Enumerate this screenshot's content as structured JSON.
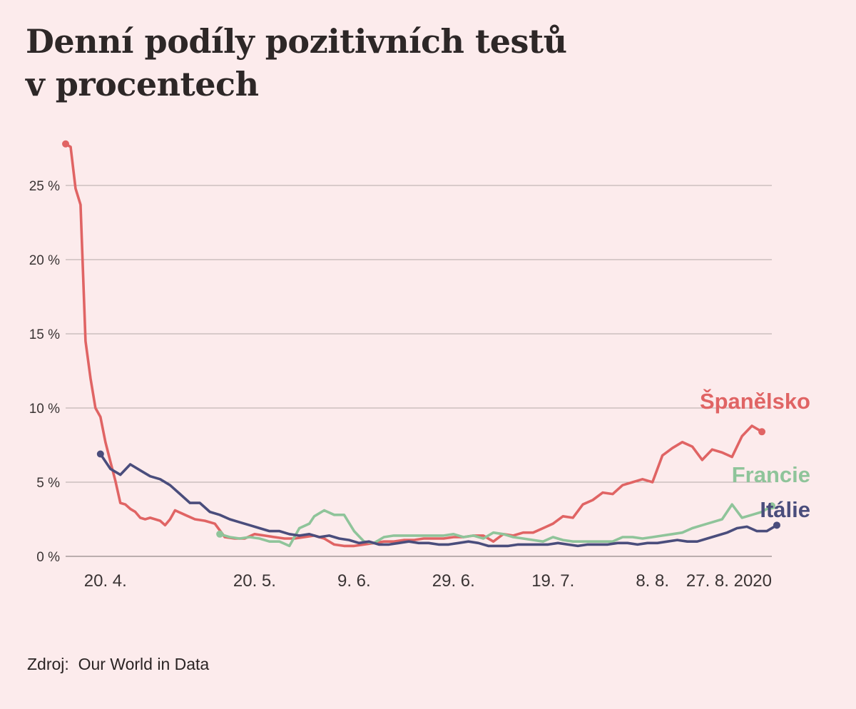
{
  "title": {
    "line1": "Denní podíly pozitivních testů",
    "line2": "v procentech"
  },
  "source": {
    "label": "Zdroj:",
    "text": "Our World in Data"
  },
  "chart_data": {
    "type": "line",
    "title": "Denní podíly pozitivních testů v procentech",
    "xlabel": "",
    "ylabel": "",
    "ylim": [
      0,
      28
    ],
    "yticks": [
      0,
      5,
      10,
      15,
      20,
      25
    ],
    "ytick_labels": [
      "0 %",
      "5 %",
      "10 %",
      "15 %",
      "20 %",
      "25 %"
    ],
    "xlim": [
      "2020-04-12",
      "2020-09-01"
    ],
    "xticks": [
      "2020-04-20",
      "2020-05-20",
      "2020-06-09",
      "2020-06-29",
      "2020-07-19",
      "2020-08-08",
      "2020-08-27"
    ],
    "xtick_labels": [
      "20. 4.",
      "20. 5.",
      "9. 6.",
      "29. 6.",
      "19. 7.",
      "8. 8.",
      "27. 8. 2020"
    ],
    "grid": true,
    "series": [
      {
        "name": "Španělsko",
        "color": "#e06464",
        "x": [
          "2020-04-12",
          "2020-04-13",
          "2020-04-14",
          "2020-04-15",
          "2020-04-16",
          "2020-04-17",
          "2020-04-18",
          "2020-04-19",
          "2020-04-20",
          "2020-04-21",
          "2020-04-22",
          "2020-04-23",
          "2020-04-24",
          "2020-04-25",
          "2020-04-26",
          "2020-04-27",
          "2020-04-28",
          "2020-04-29",
          "2020-04-30",
          "2020-05-01",
          "2020-05-02",
          "2020-05-03",
          "2020-05-04",
          "2020-05-06",
          "2020-05-08",
          "2020-05-10",
          "2020-05-12",
          "2020-05-14",
          "2020-05-16",
          "2020-05-18",
          "2020-05-20",
          "2020-05-22",
          "2020-05-24",
          "2020-05-26",
          "2020-05-28",
          "2020-05-30",
          "2020-06-01",
          "2020-06-03",
          "2020-06-05",
          "2020-06-07",
          "2020-06-09",
          "2020-06-11",
          "2020-06-13",
          "2020-06-15",
          "2020-06-17",
          "2020-06-19",
          "2020-06-21",
          "2020-06-23",
          "2020-06-25",
          "2020-06-27",
          "2020-06-29",
          "2020-07-01",
          "2020-07-03",
          "2020-07-05",
          "2020-07-07",
          "2020-07-09",
          "2020-07-11",
          "2020-07-13",
          "2020-07-15",
          "2020-07-17",
          "2020-07-19",
          "2020-07-21",
          "2020-07-23",
          "2020-07-25",
          "2020-07-27",
          "2020-07-29",
          "2020-07-31",
          "2020-08-02",
          "2020-08-04",
          "2020-08-06",
          "2020-08-08",
          "2020-08-10",
          "2020-08-12",
          "2020-08-14",
          "2020-08-16",
          "2020-08-18",
          "2020-08-20",
          "2020-08-22",
          "2020-08-24",
          "2020-08-26",
          "2020-08-28",
          "2020-08-30"
        ],
        "values": [
          27.8,
          27.6,
          24.8,
          23.7,
          14.5,
          12.0,
          10.0,
          9.4,
          7.7,
          6.4,
          5.1,
          3.6,
          3.5,
          3.2,
          3.0,
          2.6,
          2.5,
          2.6,
          2.5,
          2.4,
          2.1,
          2.5,
          3.1,
          2.8,
          2.5,
          2.4,
          2.2,
          1.3,
          1.2,
          1.2,
          1.5,
          1.4,
          1.3,
          1.2,
          1.2,
          1.3,
          1.4,
          1.2,
          0.8,
          0.7,
          0.7,
          0.8,
          0.9,
          1.0,
          1.0,
          1.1,
          1.1,
          1.2,
          1.2,
          1.2,
          1.3,
          1.3,
          1.4,
          1.4,
          1.0,
          1.5,
          1.4,
          1.6,
          1.6,
          1.9,
          2.2,
          2.7,
          2.6,
          3.5,
          3.8,
          4.3,
          4.2,
          4.8,
          5.0,
          5.2,
          5.0,
          6.8,
          7.3,
          7.7,
          7.4,
          6.5,
          7.2,
          7.0,
          6.7,
          8.1,
          8.8,
          8.4
        ]
      },
      {
        "name": "Francie",
        "color": "#8fc49a",
        "x": [
          "2020-05-13",
          "2020-05-15",
          "2020-05-17",
          "2020-05-19",
          "2020-05-21",
          "2020-05-23",
          "2020-05-25",
          "2020-05-27",
          "2020-05-29",
          "2020-05-31",
          "2020-06-01",
          "2020-06-03",
          "2020-06-05",
          "2020-06-07",
          "2020-06-09",
          "2020-06-11",
          "2020-06-13",
          "2020-06-15",
          "2020-06-17",
          "2020-06-19",
          "2020-06-21",
          "2020-06-23",
          "2020-06-25",
          "2020-06-27",
          "2020-06-29",
          "2020-07-01",
          "2020-07-03",
          "2020-07-05",
          "2020-07-07",
          "2020-07-09",
          "2020-07-11",
          "2020-07-13",
          "2020-07-15",
          "2020-07-17",
          "2020-07-19",
          "2020-07-21",
          "2020-07-23",
          "2020-07-25",
          "2020-07-27",
          "2020-07-29",
          "2020-07-31",
          "2020-08-02",
          "2020-08-04",
          "2020-08-06",
          "2020-08-08",
          "2020-08-10",
          "2020-08-12",
          "2020-08-14",
          "2020-08-16",
          "2020-08-18",
          "2020-08-20",
          "2020-08-22",
          "2020-08-24",
          "2020-08-26",
          "2020-08-28",
          "2020-08-30",
          "2020-09-01"
        ],
        "values": [
          1.5,
          1.3,
          1.2,
          1.3,
          1.2,
          1.0,
          1.0,
          0.7,
          1.9,
          2.2,
          2.7,
          3.1,
          2.8,
          2.8,
          1.7,
          1.0,
          0.9,
          1.3,
          1.4,
          1.4,
          1.4,
          1.4,
          1.4,
          1.4,
          1.5,
          1.3,
          1.4,
          1.2,
          1.6,
          1.5,
          1.3,
          1.2,
          1.1,
          1.0,
          1.3,
          1.1,
          1.0,
          1.0,
          1.0,
          1.0,
          1.0,
          1.3,
          1.3,
          1.2,
          1.3,
          1.4,
          1.5,
          1.6,
          1.9,
          2.1,
          2.3,
          2.5,
          3.5,
          2.6,
          2.8,
          3.0,
          3.4
        ]
      },
      {
        "name": "Itálie",
        "color": "#4a4d7c",
        "x": [
          "2020-04-19",
          "2020-04-21",
          "2020-04-23",
          "2020-04-25",
          "2020-04-27",
          "2020-04-29",
          "2020-05-01",
          "2020-05-03",
          "2020-05-05",
          "2020-05-07",
          "2020-05-09",
          "2020-05-11",
          "2020-05-13",
          "2020-05-15",
          "2020-05-17",
          "2020-05-19",
          "2020-05-21",
          "2020-05-23",
          "2020-05-25",
          "2020-05-27",
          "2020-05-29",
          "2020-05-31",
          "2020-06-02",
          "2020-06-04",
          "2020-06-06",
          "2020-06-08",
          "2020-06-10",
          "2020-06-12",
          "2020-06-14",
          "2020-06-16",
          "2020-06-18",
          "2020-06-20",
          "2020-06-22",
          "2020-06-24",
          "2020-06-26",
          "2020-06-28",
          "2020-06-30",
          "2020-07-02",
          "2020-07-04",
          "2020-07-06",
          "2020-07-08",
          "2020-07-10",
          "2020-07-12",
          "2020-07-14",
          "2020-07-16",
          "2020-07-18",
          "2020-07-20",
          "2020-07-22",
          "2020-07-24",
          "2020-07-26",
          "2020-07-28",
          "2020-07-30",
          "2020-08-01",
          "2020-08-03",
          "2020-08-05",
          "2020-08-07",
          "2020-08-09",
          "2020-08-11",
          "2020-08-13",
          "2020-08-15",
          "2020-08-17",
          "2020-08-19",
          "2020-08-21",
          "2020-08-23",
          "2020-08-25",
          "2020-08-27",
          "2020-08-29",
          "2020-08-31",
          "2020-09-02"
        ],
        "values": [
          6.9,
          5.9,
          5.5,
          6.2,
          5.8,
          5.4,
          5.2,
          4.8,
          4.2,
          3.6,
          3.6,
          3.0,
          2.8,
          2.5,
          2.3,
          2.1,
          1.9,
          1.7,
          1.7,
          1.5,
          1.4,
          1.5,
          1.3,
          1.4,
          1.2,
          1.1,
          0.9,
          1.0,
          0.8,
          0.8,
          0.9,
          1.0,
          0.9,
          0.9,
          0.8,
          0.8,
          0.9,
          1.0,
          0.9,
          0.7,
          0.7,
          0.7,
          0.8,
          0.8,
          0.8,
          0.8,
          0.9,
          0.8,
          0.7,
          0.8,
          0.8,
          0.8,
          0.9,
          0.9,
          0.8,
          0.9,
          0.9,
          1.0,
          1.1,
          1.0,
          1.0,
          1.2,
          1.4,
          1.6,
          1.9,
          2.0,
          1.7,
          1.7,
          2.1
        ]
      }
    ]
  }
}
